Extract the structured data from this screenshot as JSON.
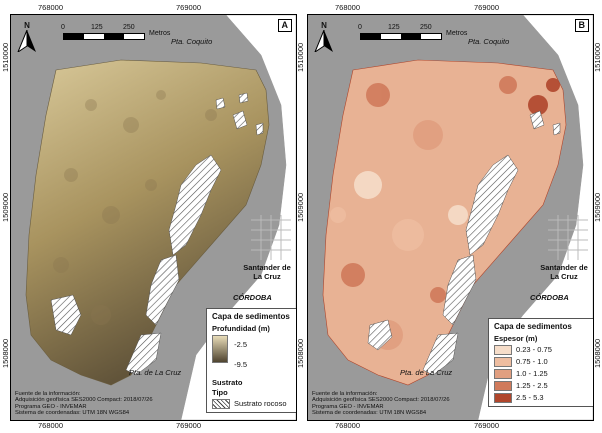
{
  "coords": {
    "top_x": [
      "768000",
      "769000"
    ],
    "bottom_x": [
      "768000",
      "769000"
    ],
    "left_y": [
      "1510000",
      "1509000",
      "1508000"
    ],
    "right_y": [
      "1510000",
      "1509000",
      "1508000"
    ]
  },
  "scale": {
    "ticks": [
      "0",
      "125",
      "250"
    ],
    "unit": "Metros"
  },
  "north_label": "N",
  "panels": [
    {
      "letter": "A",
      "places": {
        "top": "Pta. Coquito",
        "city": "Santander de La Cruz",
        "dept": "CÓRDOBA",
        "bottom": "Pta. de La Cruz"
      },
      "legend": {
        "title": "Capa de sedimentos",
        "subtitle": "Profundidad (m)",
        "max": "-2.5",
        "min": "-9.5",
        "sub2": "Sustrato",
        "sub3": "Tipo",
        "rock_label": "Sustrato rocoso"
      },
      "source": [
        "Fuente de la información:",
        "Adquisición geofísica SES2000 Compact: 2018/07/26",
        "Programa GEO - INVEMAR",
        "Sistema de coordenadas: UTM 18N WGS84"
      ]
    },
    {
      "letter": "B",
      "places": {
        "top": "Pta. Coquito",
        "city": "Santander de La Cruz",
        "dept": "CÓRDOBA",
        "bottom": "Pta. de La Cruz"
      },
      "legend": {
        "title": "Capa de sedimentos",
        "subtitle": "Espesor (m)",
        "classes": [
          {
            "label": "0.23 - 0.75",
            "color": "#f6ddc9"
          },
          {
            "label": "0.75 - 1.0",
            "color": "#eebda0"
          },
          {
            "label": "1.0 - 1.25",
            "color": "#e19f80"
          },
          {
            "label": "1.25 - 2.5",
            "color": "#d07a5b"
          },
          {
            "label": "2.5 - 5.3",
            "color": "#b0462c"
          }
        ]
      },
      "source": [
        "Fuente de la información:",
        "Adquisición geofísica SES2000 Compact: 2018/07/26",
        "Programa GEO - INVEMAR",
        "Sistema de coordenadas: UTM 18N WGS84"
      ]
    }
  ]
}
